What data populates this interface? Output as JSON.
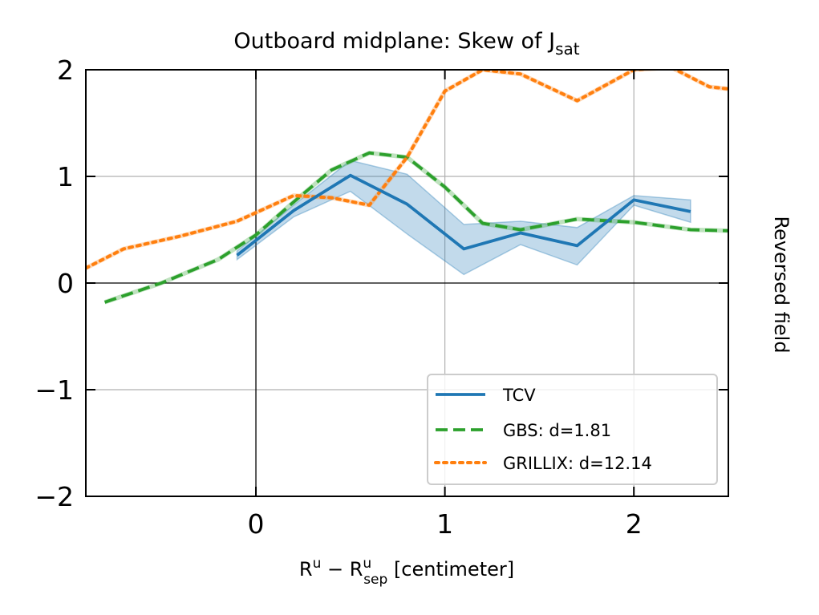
{
  "chart_data": {
    "type": "line",
    "title": "Outboard midplane: Skew of J",
    "title_subscript": "sat",
    "xlabel": {
      "r1": "R",
      "r1_sup": "u",
      "minus": " − ",
      "r2": "R",
      "r2_sup": "u",
      "r2_sub": "sep",
      "unit": " [centimeter]"
    },
    "ylabel": "",
    "right_label": "Reversed field",
    "xlim": [
      -0.9,
      2.5
    ],
    "ylim": [
      -2,
      2
    ],
    "x_ticks": [
      {
        "value": 0,
        "label": "0"
      },
      {
        "value": 1,
        "label": "1"
      },
      {
        "value": 2,
        "label": "2"
      }
    ],
    "y_ticks": [
      {
        "value": 2,
        "label": "2"
      },
      {
        "value": 1,
        "label": "1"
      },
      {
        "value": 0,
        "label": "0"
      },
      {
        "value": -1,
        "label": "−1"
      },
      {
        "value": -2,
        "label": "−2"
      }
    ],
    "grid": true,
    "legend_position": "lower-right",
    "series": [
      {
        "name": "TCV",
        "style": "solid",
        "color": "#1f77b4",
        "x": [
          -0.1,
          0.2,
          0.5,
          0.8,
          1.1,
          1.4,
          1.7,
          2.0,
          2.3
        ],
        "y": [
          0.26,
          0.68,
          1.01,
          0.74,
          0.32,
          0.47,
          0.35,
          0.78,
          0.67
        ],
        "band_upper": [
          0.3,
          0.73,
          1.15,
          1.02,
          0.55,
          0.58,
          0.52,
          0.82,
          0.78
        ],
        "band_lower": [
          0.22,
          0.62,
          0.86,
          0.46,
          0.08,
          0.36,
          0.17,
          0.73,
          0.57
        ]
      },
      {
        "name": "GBS: d=1.81",
        "style": "dashed",
        "color": "#2ca02c",
        "x": [
          -0.8,
          -0.5,
          -0.2,
          0.0,
          0.2,
          0.4,
          0.6,
          0.8,
          1.0,
          1.2,
          1.4,
          1.7,
          2.0,
          2.3,
          2.5
        ],
        "y": [
          -0.18,
          0.0,
          0.22,
          0.45,
          0.76,
          1.06,
          1.22,
          1.18,
          0.9,
          0.56,
          0.5,
          0.6,
          0.57,
          0.5,
          0.49
        ]
      },
      {
        "name": "GRILLIX: d=12.14",
        "style": "dotted",
        "color": "#ff7f0e",
        "x": [
          -0.9,
          -0.7,
          -0.4,
          -0.1,
          0.2,
          0.4,
          0.6,
          0.8,
          1.0,
          1.2,
          1.4,
          1.7,
          2.0,
          2.2,
          2.4,
          2.5
        ],
        "y": [
          0.14,
          0.32,
          0.44,
          0.58,
          0.82,
          0.8,
          0.73,
          1.18,
          1.8,
          2.0,
          1.96,
          1.71,
          2.0,
          2.02,
          1.84,
          1.82
        ]
      }
    ]
  }
}
